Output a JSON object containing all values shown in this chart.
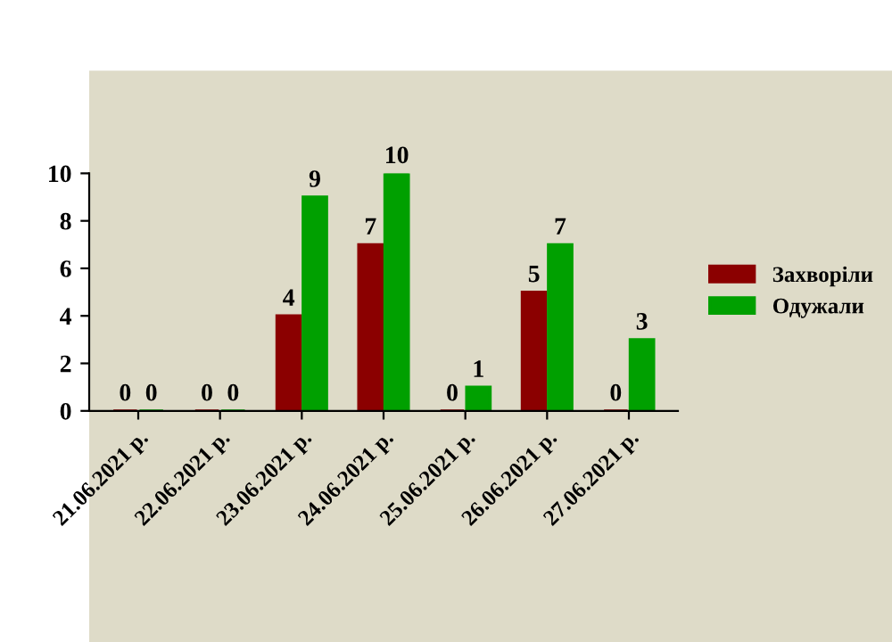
{
  "chart_data": {
    "type": "bar",
    "categories": [
      "21.06.2021 р.",
      "22.06.2021 р.",
      "23.06.2021 р.",
      "24.06.2021 р.",
      "25.06.2021 р.",
      "26.06.2021 р.",
      "27.06.2021 р."
    ],
    "series": [
      {
        "name": "Захворіли",
        "color": "#8b0000",
        "values": [
          0,
          0,
          4,
          7,
          0,
          5,
          0
        ]
      },
      {
        "name": "Одужали",
        "color": "#00a000",
        "values": [
          0,
          0,
          9,
          10,
          1,
          7,
          3
        ]
      }
    ],
    "ylim": [
      0,
      10
    ],
    "yticks": [
      0,
      2,
      4,
      6,
      8,
      10
    ],
    "data_labels": true,
    "legend": "right",
    "grid": false
  }
}
